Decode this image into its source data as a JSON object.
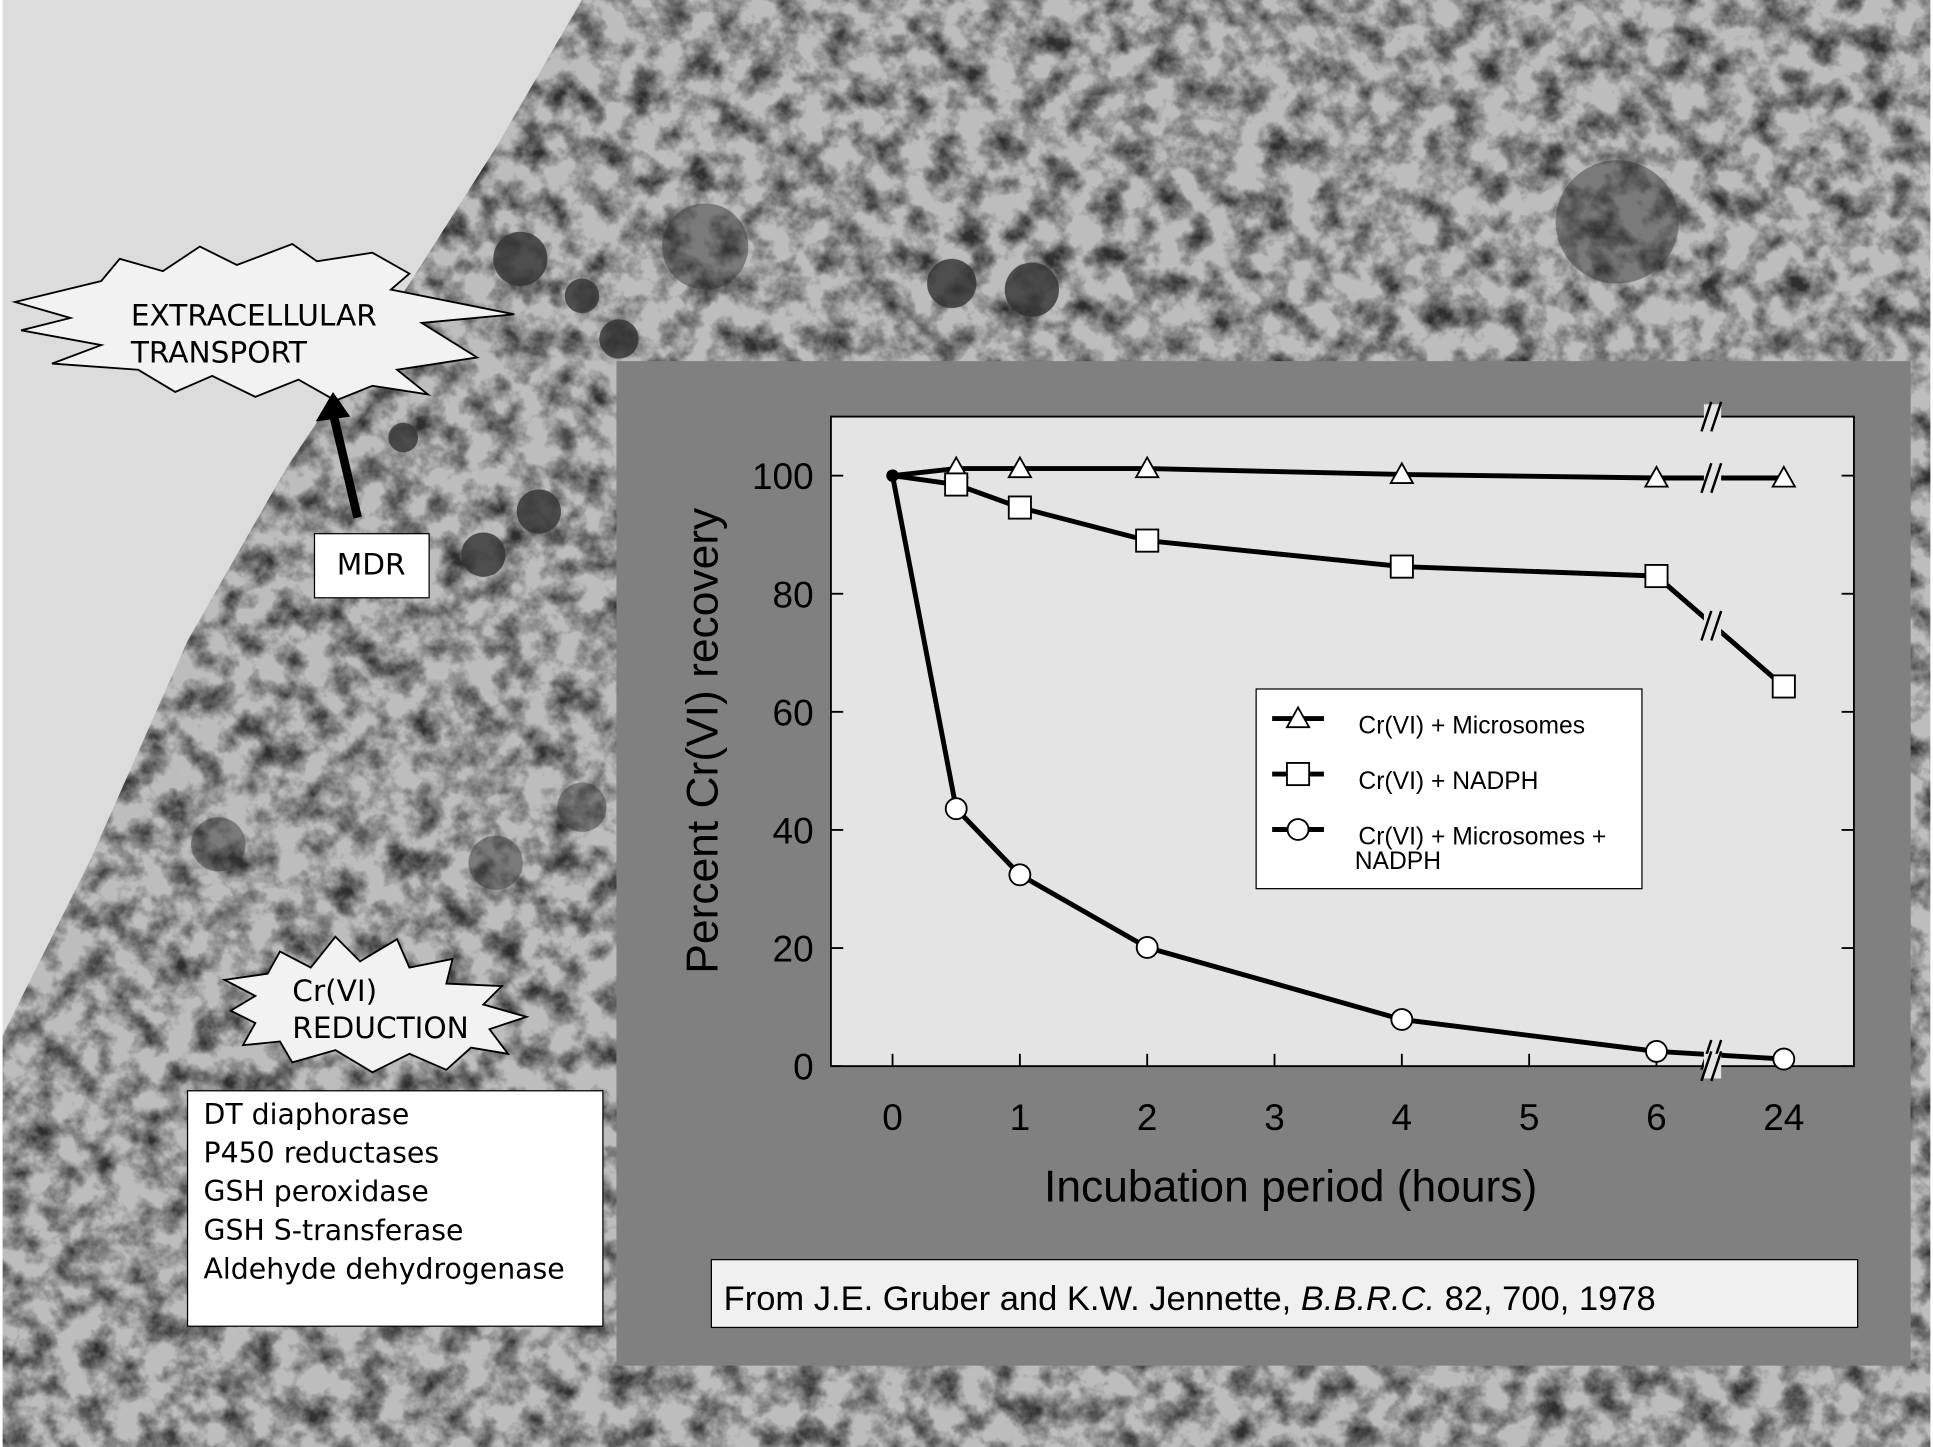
{
  "chart_data": {
    "type": "line",
    "x_label": "Incubation period (hours)",
    "y_label": "Percent Cr(VI) recovery",
    "xticks": [
      0,
      1,
      2,
      3,
      4,
      5,
      6,
      24
    ],
    "x_break": true,
    "ylim": [
      0,
      110
    ],
    "yticks": [
      0,
      20,
      40,
      60,
      80,
      100
    ],
    "series": [
      {
        "name": "Cr(VI) + Microsomes",
        "marker": "triangle",
        "color": "#000000",
        "x": [
          0,
          0.5,
          1,
          2,
          4,
          6,
          24
        ],
        "values": [
          100,
          101.2,
          101.2,
          101.2,
          100.2,
          99.6,
          99.6
        ]
      },
      {
        "name": "Cr(VI) + NADPH",
        "marker": "square",
        "color": "#000000",
        "x": [
          0,
          0.5,
          1,
          2,
          4,
          6,
          24
        ],
        "values": [
          100,
          98.5,
          94.6,
          89,
          84.6,
          83,
          64.3
        ]
      },
      {
        "name": "Cr(VI) + Microsomes + NADPH",
        "marker": "circle",
        "color": "#000000",
        "x": [
          0,
          0.5,
          1,
          2,
          4,
          6,
          24
        ],
        "values": [
          100,
          43.6,
          32.4,
          20.1,
          7.9,
          2.5,
          1.2
        ]
      }
    ],
    "caption": [
      "From J.E. Gruber and K.W. Jennette, ",
      "B.B.R.C.",
      " 82, 700, 1978"
    ]
  },
  "callouts": {
    "transport": [
      "EXTRACELLULAR",
      "TRANSPORT"
    ],
    "mdr": "MDR",
    "reduction": [
      "Cr(VI)",
      "REDUCTION"
    ],
    "enzymes": [
      "DT diaphorase",
      "P450 reductases",
      "GSH peroxidase",
      "GSH S-transferase",
      "Aldehyde dehydrogenase"
    ]
  }
}
